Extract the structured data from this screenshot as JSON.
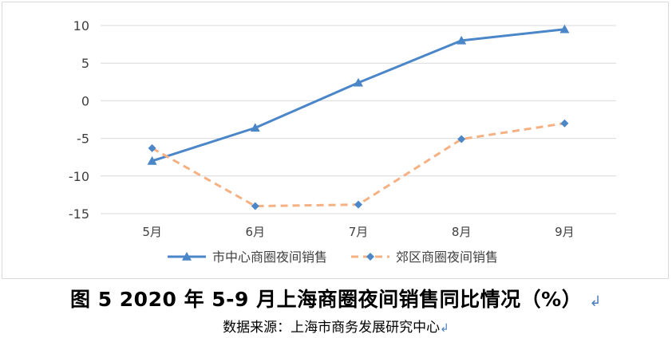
{
  "chart_data": {
    "type": "line",
    "categories": [
      "5月",
      "6月",
      "7月",
      "8月",
      "9月"
    ],
    "series": [
      {
        "name": "市中心商圈夜间销售",
        "values": [
          -8.0,
          -3.6,
          2.4,
          8.0,
          9.5
        ],
        "color": "#4a86c8",
        "style": "solid",
        "marker": "triangle"
      },
      {
        "name": "郊区商圈夜间销售",
        "values": [
          -6.3,
          -14.0,
          -13.8,
          -5.1,
          -3.0
        ],
        "color": "#f5b183",
        "style": "dashed",
        "marker": "diamond"
      }
    ],
    "ylim": [
      -15,
      10
    ],
    "yticks": [
      10,
      5,
      0,
      -5,
      -10,
      -15
    ],
    "grid": true,
    "legend_position": "bottom"
  },
  "caption": {
    "title": "图 5  2020 年 5-9 月上海商圈夜间销售同比情况（%）",
    "source": "数据来源：上海市商务发展研究中心"
  },
  "colors": {
    "grid": "#d9d9d9",
    "axis_text": "#404040",
    "paragraph_mark": "#4a7ebb"
  }
}
